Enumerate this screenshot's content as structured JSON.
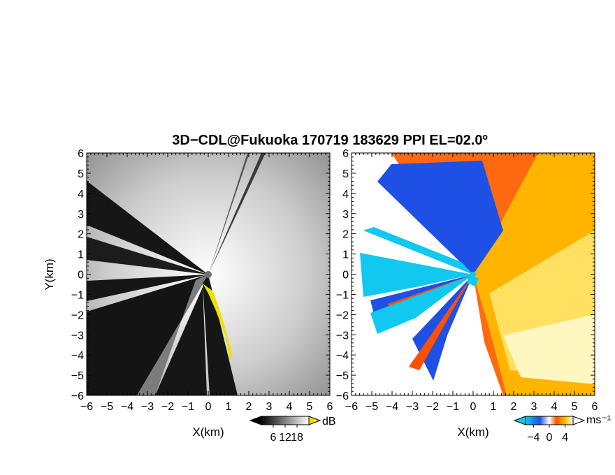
{
  "chart_data": [
    {
      "type": "heatmap",
      "title": "3D−CDL@Fukuoka 170719 183629 PPI EL=02.0º",
      "xlabel": "X(km)",
      "ylabel": "Y(km)",
      "xlim": [
        -6,
        6
      ],
      "ylim": [
        -6,
        6
      ],
      "x_ticks": [
        "−6",
        "−5",
        "−4",
        "−3",
        "−2",
        "−1",
        "0",
        "1",
        "2",
        "3",
        "4",
        "5",
        "6"
      ],
      "y_ticks": [
        "6",
        "5",
        "4",
        "3",
        "2",
        "1",
        "0",
        "−1",
        "−2",
        "−3",
        "−4",
        "−5",
        "−6"
      ],
      "colormap": "grayscale",
      "colorbar": {
        "unit": "dB",
        "ticks": [
          "6",
          "12",
          "18"
        ],
        "tick_values": [
          6,
          12,
          18
        ],
        "range": [
          0,
          24
        ]
      }
    },
    {
      "type": "heatmap",
      "xlabel": "X(km)",
      "ylabel": "",
      "xlim": [
        -6,
        6
      ],
      "ylim": [
        -6,
        6
      ],
      "x_ticks": [
        "−6",
        "−5",
        "−4",
        "−3",
        "−2",
        "−1",
        "0",
        "1",
        "2",
        "3",
        "4",
        "5",
        "6"
      ],
      "y_ticks": [
        "6",
        "5",
        "4",
        "3",
        "2",
        "1",
        "0",
        "−1",
        "−2",
        "−3",
        "−4",
        "−5",
        "−6"
      ],
      "colormap": "blue-white-red",
      "colorbar": {
        "unit": "ms⁻¹",
        "ticks": [
          "−4",
          "0",
          "4"
        ],
        "tick_values": [
          -4,
          0,
          4
        ],
        "range": [
          -6,
          6
        ]
      }
    }
  ],
  "colors": {
    "highlight": "#f0e000",
    "negative_strong": "#1e50e6",
    "negative_weak": "#10c8f0",
    "positive_weak": "#ffc800",
    "positive_strong": "#ff5000"
  }
}
